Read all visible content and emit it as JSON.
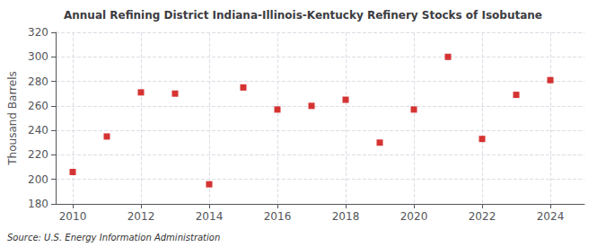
{
  "chart_data": {
    "type": "scatter",
    "title": "Annual Refining District Indiana-Illinois-Kentucky Refinery Stocks of Isobutane",
    "ylabel": "Thousand Barrels",
    "source": "Source: U.S. Energy Information Administration",
    "x": [
      2010,
      2011,
      2012,
      2013,
      2014,
      2015,
      2016,
      2017,
      2018,
      2019,
      2020,
      2021,
      2022,
      2023,
      2024
    ],
    "values": [
      206,
      235,
      271,
      270,
      196,
      275,
      257,
      260,
      265,
      230,
      257,
      300,
      233,
      269,
      281
    ],
    "color": "#cc0000",
    "marker": "square",
    "xlim": [
      2009.5,
      2025.0
    ],
    "xticks": [
      2010,
      2012,
      2014,
      2016,
      2018,
      2020,
      2022,
      2024
    ],
    "ylim": [
      180,
      320
    ],
    "yticks": [
      180,
      200,
      220,
      240,
      260,
      280,
      300,
      320
    ],
    "grid": true
  }
}
